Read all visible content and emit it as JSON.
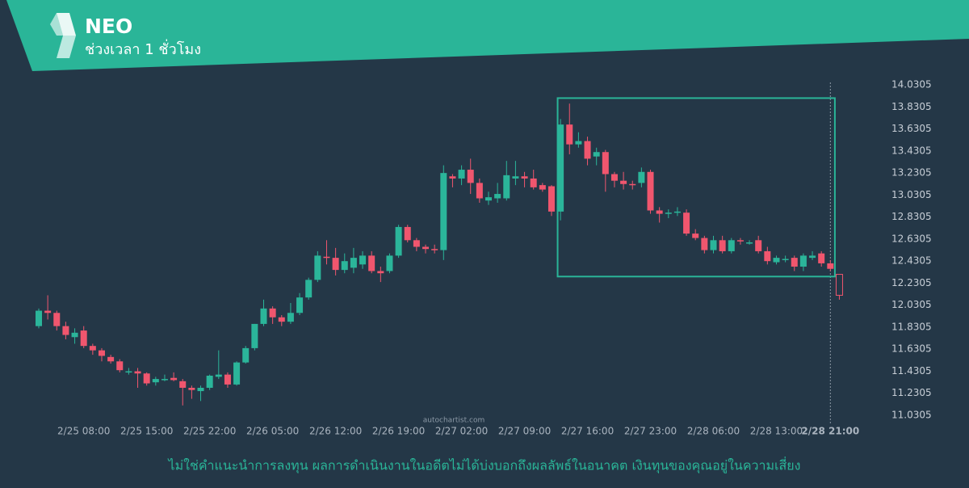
{
  "chart_data": {
    "type": "candlestick",
    "title": "NEO",
    "subtitle": "ช่วงเวลา 1 ชั่วโมง",
    "disclaimer": "ไม่ใช่คำแนะนำการลงทุน ผลการดำเนินงานในอดีตไม่ได้บ่งบอกถึงผลลัพธ์ในอนาคต เงินทุนของคุณอยู่ในความเสี่ยง",
    "watermark": "autochartist.com",
    "up_color": "#2bb59a",
    "down_color": "#f0566e",
    "ylim": [
      11.0305,
      14.0305
    ],
    "yticks": [
      11.0305,
      11.2305,
      11.4305,
      11.6305,
      11.8305,
      12.0305,
      12.2305,
      12.4305,
      12.6305,
      12.8305,
      13.0305,
      13.2305,
      13.4305,
      13.6305,
      13.8305,
      14.0305
    ],
    "categories": [
      null,
      null,
      null,
      null,
      null,
      "2/25 08:00",
      null,
      null,
      null,
      null,
      null,
      null,
      "2/25 15:00",
      null,
      null,
      null,
      null,
      null,
      null,
      "2/25 22:00",
      null,
      null,
      null,
      null,
      null,
      null,
      "2/26 05:00",
      null,
      null,
      null,
      null,
      null,
      null,
      "2/26 12:00",
      null,
      null,
      null,
      null,
      null,
      null,
      "2/26 19:00",
      null,
      null,
      null,
      null,
      null,
      null,
      "2/27 02:00",
      null,
      null,
      null,
      null,
      null,
      null,
      "2/27 09:00",
      null,
      null,
      null,
      null,
      null,
      null,
      "2/27 16:00",
      null,
      null,
      null,
      null,
      null,
      null,
      "2/27 23:00",
      null,
      null,
      null,
      null,
      null,
      null,
      "2/28 06:00",
      null,
      null,
      null,
      null,
      null,
      null,
      "2/28 13:00",
      null,
      null,
      null,
      null,
      null,
      "2/28 21:00",
      null
    ],
    "open": [
      11.84,
      11.98,
      11.96,
      11.84,
      11.74,
      11.8,
      11.66,
      11.62,
      11.56,
      11.52,
      11.42,
      11.43,
      11.41,
      11.33,
      11.36,
      11.37,
      11.34,
      11.28,
      11.25,
      11.28,
      11.38,
      11.4,
      11.31,
      11.51,
      11.64,
      11.86,
      12.0,
      11.92,
      11.88,
      11.96,
      12.1,
      12.26,
      12.47,
      12.46,
      12.35,
      12.37,
      12.4,
      12.48,
      12.34,
      12.34,
      12.48,
      12.74,
      12.62,
      12.56,
      12.54,
      12.53,
      13.2,
      13.18,
      13.26,
      13.14,
      12.98,
      13.0,
      13.0,
      13.18,
      13.2,
      13.18,
      13.12,
      13.11,
      12.88,
      13.67,
      13.49,
      13.52,
      13.38,
      13.42,
      13.22,
      13.16,
      13.13,
      13.14,
      13.24,
      12.89,
      12.86,
      12.87,
      12.87,
      12.68,
      12.64,
      12.53,
      12.62,
      12.52,
      12.62,
      12.6,
      12.62,
      12.52,
      12.42,
      12.44,
      12.46,
      12.38,
      12.46,
      12.5,
      12.41,
      12.31
    ],
    "high": [
      12.0,
      12.12,
      11.98,
      11.88,
      11.82,
      11.84,
      11.68,
      11.64,
      11.58,
      11.54,
      11.46,
      11.46,
      11.42,
      11.38,
      11.4,
      11.42,
      11.36,
      11.3,
      11.3,
      11.4,
      11.62,
      11.42,
      11.52,
      11.66,
      11.86,
      12.08,
      12.02,
      11.94,
      12.05,
      12.14,
      12.28,
      12.52,
      12.62,
      12.55,
      12.5,
      12.55,
      12.52,
      12.52,
      12.38,
      12.5,
      12.76,
      12.76,
      12.64,
      12.58,
      12.58,
      13.3,
      13.22,
      13.3,
      13.36,
      13.18,
      13.06,
      13.14,
      13.34,
      13.34,
      13.24,
      13.26,
      13.14,
      13.12,
      13.72,
      13.86,
      13.6,
      13.56,
      13.46,
      13.44,
      13.24,
      13.24,
      13.16,
      13.28,
      13.26,
      12.92,
      12.9,
      12.92,
      12.9,
      12.72,
      12.66,
      12.66,
      12.66,
      12.64,
      12.64,
      12.62,
      12.66,
      12.56,
      12.48,
      12.48,
      12.48,
      12.5,
      12.52,
      12.52,
      12.44,
      12.31
    ],
    "low": [
      11.82,
      11.9,
      11.8,
      11.72,
      11.68,
      11.64,
      11.58,
      11.52,
      11.5,
      11.42,
      11.4,
      11.28,
      11.3,
      11.3,
      11.34,
      11.34,
      11.12,
      11.18,
      11.16,
      11.26,
      11.36,
      11.28,
      11.3,
      11.5,
      11.62,
      11.84,
      11.86,
      11.84,
      11.86,
      11.94,
      12.08,
      12.24,
      12.4,
      12.3,
      12.32,
      12.32,
      12.36,
      12.32,
      12.24,
      12.32,
      12.46,
      12.6,
      12.52,
      12.5,
      12.5,
      12.44,
      13.1,
      13.12,
      13.04,
      12.96,
      12.94,
      12.96,
      12.98,
      13.12,
      13.1,
      13.08,
      13.06,
      12.84,
      12.8,
      13.4,
      13.46,
      13.3,
      13.3,
      13.06,
      13.1,
      13.08,
      13.08,
      13.1,
      12.86,
      12.78,
      12.82,
      12.84,
      12.66,
      12.62,
      12.5,
      12.5,
      12.5,
      12.5,
      12.58,
      12.58,
      12.5,
      12.4,
      12.4,
      12.42,
      12.34,
      12.34,
      12.44,
      12.38,
      12.34,
      12.08
    ],
    "close": [
      11.98,
      11.96,
      11.84,
      11.76,
      11.78,
      11.66,
      11.62,
      11.57,
      11.52,
      11.44,
      11.43,
      11.41,
      11.32,
      11.36,
      11.36,
      11.35,
      11.28,
      11.26,
      11.28,
      11.39,
      11.4,
      11.31,
      11.51,
      11.64,
      11.86,
      12.0,
      11.92,
      11.88,
      11.96,
      12.1,
      12.26,
      12.48,
      12.46,
      12.35,
      12.43,
      12.46,
      12.48,
      12.34,
      12.32,
      12.48,
      12.74,
      12.62,
      12.56,
      12.54,
      12.53,
      13.23,
      13.18,
      13.26,
      13.14,
      13.0,
      13.01,
      13.04,
      13.21,
      13.2,
      13.18,
      13.1,
      13.08,
      12.88,
      13.67,
      13.49,
      13.52,
      13.36,
      13.42,
      13.22,
      13.16,
      13.13,
      13.12,
      13.24,
      12.89,
      12.86,
      12.87,
      12.88,
      12.68,
      12.64,
      12.53,
      12.62,
      12.52,
      12.62,
      12.61,
      12.6,
      12.52,
      12.43,
      12.46,
      12.45,
      12.38,
      12.48,
      12.48,
      12.41,
      12.36,
      12.12
    ],
    "pattern": {
      "high": 13.91,
      "low": 12.29,
      "from": 58,
      "to": 88
    }
  }
}
